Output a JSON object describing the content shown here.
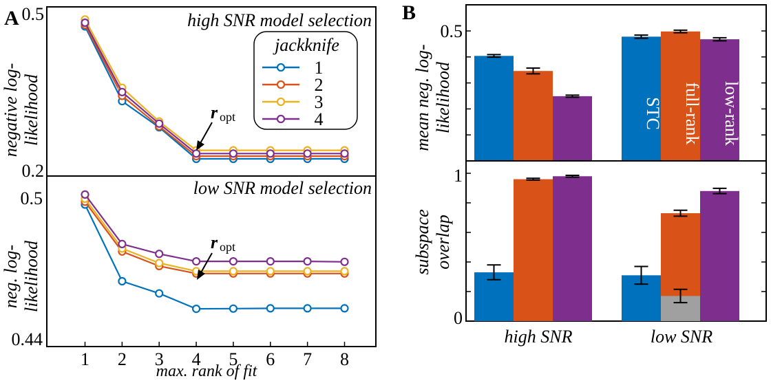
{
  "panel_a_label": "A",
  "panel_b_label": "B",
  "colors": {
    "blue": "#0072BD",
    "orange": "#D95319",
    "yellow": "#EDB120",
    "purple": "#7E2F8E",
    "gray": "#A0A0A0"
  },
  "chart_data": [
    {
      "id": "A-top",
      "type": "line",
      "title": "high SNR model selection",
      "ylabel": "negative log-likelihood",
      "xlabel": "",
      "x": [
        1,
        2,
        3,
        4,
        5,
        6,
        7,
        8
      ],
      "ylim": [
        0.2,
        0.5
      ],
      "ytick_labels": [
        "0.2",
        "0.5"
      ],
      "legend": {
        "title": "jackknife",
        "placement": "top-right"
      },
      "annotation": {
        "text": "r",
        "sub": "opt",
        "at_x": 4
      },
      "series": [
        {
          "name": "1",
          "color": "#0072BD",
          "values": [
            0.475,
            0.335,
            0.286,
            0.227,
            0.227,
            0.227,
            0.227,
            0.227
          ]
        },
        {
          "name": "2",
          "color": "#D95319",
          "values": [
            0.478,
            0.345,
            0.288,
            0.232,
            0.232,
            0.232,
            0.232,
            0.232
          ]
        },
        {
          "name": "3",
          "color": "#EDB120",
          "values": [
            0.488,
            0.36,
            0.297,
            0.243,
            0.243,
            0.243,
            0.243,
            0.243
          ]
        },
        {
          "name": "4",
          "color": "#7E2F8E",
          "values": [
            0.482,
            0.352,
            0.293,
            0.237,
            0.237,
            0.237,
            0.237,
            0.237
          ]
        }
      ]
    },
    {
      "id": "A-bottom",
      "type": "line",
      "title": "low SNR model selection",
      "ylabel": "neg. log-likelihood",
      "xlabel": "max. rank of fit",
      "x": [
        1,
        2,
        3,
        4,
        5,
        6,
        7,
        8
      ],
      "xtick_labels": [
        "1",
        "2",
        "3",
        "4",
        "5",
        "6",
        "7",
        "8"
      ],
      "ylim": [
        0.44,
        0.5
      ],
      "ytick_labels": [
        "0.44",
        "0.5"
      ],
      "annotation": {
        "text": "r",
        "sub": "opt",
        "at_x": 4
      },
      "series": [
        {
          "name": "1",
          "color": "#0072BD",
          "values": [
            0.4978,
            0.465,
            0.4598,
            0.4532,
            0.4533,
            0.4534,
            0.4534,
            0.4534
          ]
        },
        {
          "name": "2",
          "color": "#D95319",
          "values": [
            0.499,
            0.4777,
            0.4715,
            0.4683,
            0.4683,
            0.4683,
            0.4683,
            0.4683
          ]
        },
        {
          "name": "3",
          "color": "#EDB120",
          "values": [
            0.5003,
            0.479,
            0.4728,
            0.4693,
            0.4693,
            0.4693,
            0.4693,
            0.4693
          ]
        },
        {
          "name": "4",
          "color": "#7E2F8E",
          "values": [
            0.5021,
            0.4809,
            0.4767,
            0.4735,
            0.4735,
            0.4735,
            0.4735,
            0.4733
          ]
        }
      ]
    },
    {
      "id": "B-top",
      "type": "bar",
      "ylabel": "mean neg. log-likelihood",
      "categories": [
        "high SNR",
        "low SNR"
      ],
      "ylim": [
        0,
        0.5
      ],
      "ytick_labels": [
        "0.5"
      ],
      "bar_labels": [
        "STC",
        "full-rank",
        "low-rank"
      ],
      "series": [
        {
          "name": "STC",
          "color": "#0072BD",
          "values": [
            0.404,
            0.478
          ],
          "err": [
            0.005,
            0.006
          ]
        },
        {
          "name": "full-rank",
          "color": "#D95319",
          "values": [
            0.346,
            0.498
          ],
          "err": [
            0.011,
            0.005
          ]
        },
        {
          "name": "low-rank",
          "color": "#7E2F8E",
          "values": [
            0.249,
            0.468
          ],
          "err": [
            0.004,
            0.006
          ]
        }
      ]
    },
    {
      "id": "B-bottom",
      "type": "bar",
      "ylabel": "subspace overlap",
      "categories": [
        "high SNR",
        "low SNR"
      ],
      "ylim": [
        0,
        1
      ],
      "ytick_labels": [
        "0",
        "1"
      ],
      "series": [
        {
          "name": "STC",
          "color": "#0072BD",
          "values": [
            0.33,
            0.31
          ],
          "err": [
            0.05,
            0.06
          ]
        },
        {
          "name": "full-rank",
          "color": "#D95319",
          "values": [
            0.96,
            0.73
          ],
          "err": [
            0.006,
            0.02
          ]
        },
        {
          "name": "low-rank",
          "color": "#7E2F8E",
          "values": [
            0.98,
            0.88
          ],
          "err": [
            0.006,
            0.018
          ]
        }
      ],
      "overlay": {
        "color": "#A0A0A0",
        "category": "low SNR",
        "value": 0.17,
        "err": 0.045
      }
    }
  ]
}
